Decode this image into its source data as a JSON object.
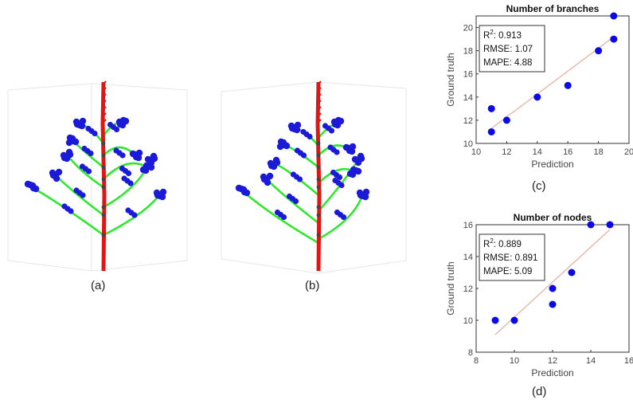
{
  "figure": {
    "captions": [
      "(a)",
      "(b)",
      "(c)",
      "(d)"
    ]
  },
  "colors": {
    "stem": "#e01515",
    "branch": "#2ee82e",
    "leaf": "#1a1ad8",
    "node": "#444444",
    "fit_line": "#e8b8a8",
    "marker": "#0a0ae8"
  },
  "chart_data": [
    {
      "type": "scatter",
      "title": "Number of branches",
      "xlabel": "Prediction",
      "ylabel": "Ground truth",
      "xlim": [
        10,
        20
      ],
      "ylim": [
        10,
        21
      ],
      "xticks": [
        10,
        12,
        14,
        16,
        18,
        20
      ],
      "yticks": [
        10,
        12,
        14,
        16,
        18,
        20
      ],
      "points": [
        [
          11,
          11
        ],
        [
          11,
          13
        ],
        [
          12,
          12
        ],
        [
          14,
          14
        ],
        [
          16,
          15
        ],
        [
          18,
          18
        ],
        [
          19,
          19
        ],
        [
          19,
          21
        ]
      ],
      "fit_line": [
        [
          11,
          11.3
        ],
        [
          19,
          19.2
        ]
      ],
      "stats": {
        "r2_label": "R",
        "r2_sup": "2",
        "r2_value": ": 0.913",
        "rmse": "RMSE: 1.07",
        "mape": "MAPE: 4.88"
      },
      "grid": false,
      "legend": "none"
    },
    {
      "type": "scatter",
      "title": "Number of nodes",
      "xlabel": "Prediction",
      "ylabel": "Ground truth",
      "xlim": [
        8,
        16
      ],
      "ylim": [
        8,
        16
      ],
      "xticks": [
        8,
        10,
        12,
        14,
        16
      ],
      "yticks": [
        8,
        10,
        12,
        14,
        16
      ],
      "points": [
        [
          9,
          10
        ],
        [
          10,
          10
        ],
        [
          12,
          11
        ],
        [
          12,
          12
        ],
        [
          13,
          13
        ],
        [
          14,
          16
        ],
        [
          15,
          16
        ]
      ],
      "fit_line": [
        [
          9,
          9.1
        ],
        [
          15,
          15.7
        ]
      ],
      "stats": {
        "r2_label": "R",
        "r2_sup": "2",
        "r2_value": ": 0.889",
        "rmse": "RMSE: 0.891",
        "mape": "MAPE: 5.09"
      },
      "grid": false,
      "legend": "none"
    }
  ]
}
